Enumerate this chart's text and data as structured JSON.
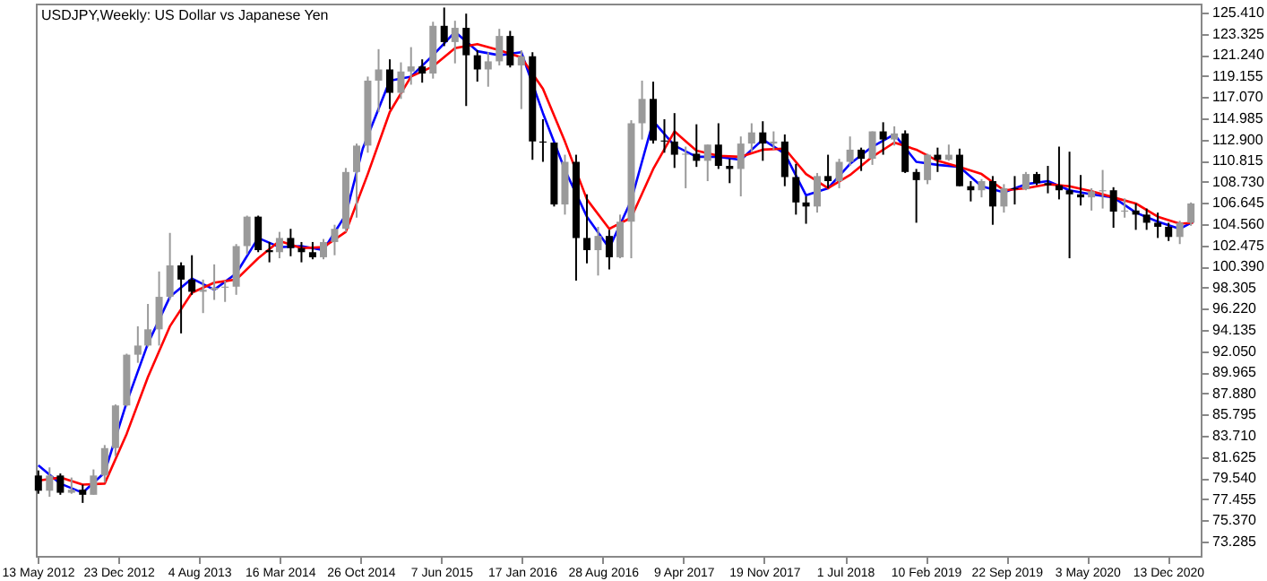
{
  "chart_data": {
    "type": "candlestick",
    "title": "USDJPY,Weekly: US Dollar vs Japanese Yen",
    "x": [
      "2012-05-15",
      "2012-06-15",
      "2012-07-15",
      "2012-08-15",
      "2012-09-15",
      "2012-10-15",
      "2012-11-15",
      "2012-12-15",
      "2013-01-15",
      "2013-02-15",
      "2013-03-15",
      "2013-04-15",
      "2013-05-15",
      "2013-06-15",
      "2013-07-15",
      "2013-08-15",
      "2013-09-15",
      "2013-10-15",
      "2013-11-15",
      "2013-12-15",
      "2014-01-15",
      "2014-02-15",
      "2014-03-15",
      "2014-04-15",
      "2014-05-15",
      "2014-06-15",
      "2014-07-15",
      "2014-08-15",
      "2014-09-15",
      "2014-10-15",
      "2014-11-15",
      "2014-12-15",
      "2015-01-15",
      "2015-02-15",
      "2015-03-15",
      "2015-04-15",
      "2015-05-15",
      "2015-06-15",
      "2015-07-15",
      "2015-08-15",
      "2015-09-15",
      "2015-10-15",
      "2015-11-15",
      "2015-12-15",
      "2016-01-15",
      "2016-02-15",
      "2016-03-15",
      "2016-04-15",
      "2016-05-15",
      "2016-06-15",
      "2016-07-15",
      "2016-08-15",
      "2016-09-15",
      "2016-10-15",
      "2016-11-15",
      "2016-12-15",
      "2017-01-15",
      "2017-02-15",
      "2017-03-15",
      "2017-04-15",
      "2017-05-15",
      "2017-06-15",
      "2017-07-15",
      "2017-08-15",
      "2017-09-15",
      "2017-10-15",
      "2017-11-15",
      "2017-12-15",
      "2018-01-15",
      "2018-02-15",
      "2018-03-15",
      "2018-04-15",
      "2018-05-15",
      "2018-06-15",
      "2018-07-15",
      "2018-08-15",
      "2018-09-15",
      "2018-10-15",
      "2018-11-15",
      "2018-12-15",
      "2019-01-15",
      "2019-02-15",
      "2019-03-15",
      "2019-04-15",
      "2019-05-15",
      "2019-06-15",
      "2019-07-15",
      "2019-08-15",
      "2019-09-15",
      "2019-10-15",
      "2019-11-15",
      "2019-12-15",
      "2020-01-15",
      "2020-02-15",
      "2020-03-15",
      "2020-04-15",
      "2020-05-15",
      "2020-06-15",
      "2020-07-15",
      "2020-08-15",
      "2020-09-15",
      "2020-10-15",
      "2020-11-15",
      "2020-12-15",
      "2021-01-15",
      "2021-02-15"
    ],
    "ohlc": [
      [
        79.8,
        80.3,
        78.0,
        78.3
      ],
      [
        78.3,
        80.6,
        77.7,
        79.8
      ],
      [
        79.8,
        80.0,
        77.9,
        78.1
      ],
      [
        78.1,
        79.6,
        78.0,
        78.4
      ],
      [
        78.4,
        78.9,
        77.1,
        77.9
      ],
      [
        77.9,
        80.4,
        77.9,
        79.8
      ],
      [
        79.8,
        82.8,
        79.1,
        82.5
      ],
      [
        82.5,
        86.8,
        81.7,
        86.7
      ],
      [
        86.7,
        91.8,
        86.6,
        91.7
      ],
      [
        91.7,
        94.5,
        90.9,
        92.6
      ],
      [
        92.6,
        96.7,
        92.5,
        94.2
      ],
      [
        94.2,
        99.9,
        92.6,
        97.4
      ],
      [
        97.4,
        103.7,
        97.1,
        100.5
      ],
      [
        100.5,
        100.8,
        93.8,
        99.1
      ],
      [
        99.1,
        101.5,
        97.6,
        97.9
      ],
      [
        97.9,
        99.1,
        95.8,
        98.1
      ],
      [
        98.1,
        100.6,
        97.1,
        98.3
      ],
      [
        98.3,
        99.0,
        96.9,
        98.4
      ],
      [
        98.4,
        102.6,
        97.6,
        102.4
      ],
      [
        102.4,
        105.4,
        101.6,
        105.3
      ],
      [
        105.3,
        105.4,
        101.8,
        102.0
      ],
      [
        102.0,
        102.8,
        100.8,
        101.8
      ],
      [
        101.8,
        103.8,
        101.2,
        103.2
      ],
      [
        103.2,
        104.1,
        101.4,
        102.2
      ],
      [
        102.2,
        102.8,
        100.8,
        101.8
      ],
      [
        101.8,
        102.8,
        101.1,
        101.3
      ],
      [
        101.3,
        103.1,
        101.1,
        102.8
      ],
      [
        102.8,
        104.5,
        101.5,
        104.1
      ],
      [
        104.1,
        110.1,
        103.8,
        109.7
      ],
      [
        109.7,
        112.5,
        105.2,
        112.3
      ],
      [
        112.3,
        119.1,
        111.6,
        118.7
      ],
      [
        118.7,
        121.8,
        115.6,
        119.8
      ],
      [
        119.8,
        120.8,
        115.9,
        117.5
      ],
      [
        117.5,
        120.5,
        116.9,
        119.6
      ],
      [
        119.6,
        122.0,
        118.3,
        120.1
      ],
      [
        120.1,
        120.8,
        118.5,
        119.4
      ],
      [
        119.4,
        124.5,
        118.9,
        124.1
      ],
      [
        124.1,
        125.9,
        122.1,
        122.5
      ],
      [
        122.5,
        124.6,
        120.4,
        123.9
      ],
      [
        123.9,
        125.3,
        116.2,
        121.2
      ],
      [
        121.2,
        121.7,
        118.6,
        119.8
      ],
      [
        119.8,
        121.5,
        118.1,
        120.6
      ],
      [
        120.6,
        123.8,
        120.2,
        123.1
      ],
      [
        123.1,
        123.6,
        120.0,
        120.2
      ],
      [
        120.2,
        121.7,
        115.9,
        121.1
      ],
      [
        121.1,
        121.5,
        110.9,
        112.7
      ],
      [
        112.7,
        114.9,
        110.7,
        112.6
      ],
      [
        112.6,
        112.6,
        106.3,
        106.5
      ],
      [
        106.5,
        111.4,
        105.5,
        110.7
      ],
      [
        110.7,
        111.4,
        99.0,
        103.2
      ],
      [
        103.2,
        107.5,
        100.7,
        102.0
      ],
      [
        102.0,
        104.3,
        99.5,
        103.4
      ],
      [
        103.4,
        104.0,
        100.1,
        101.3
      ],
      [
        101.3,
        105.5,
        101.2,
        104.8
      ],
      [
        104.8,
        114.8,
        101.2,
        114.5
      ],
      [
        114.5,
        118.7,
        112.9,
        116.9
      ],
      [
        116.9,
        118.6,
        112.5,
        112.8
      ],
      [
        112.8,
        114.9,
        111.6,
        112.7
      ],
      [
        112.7,
        115.5,
        110.1,
        111.4
      ],
      [
        111.4,
        112.2,
        108.1,
        111.5
      ],
      [
        111.5,
        114.4,
        110.2,
        110.8
      ],
      [
        110.8,
        112.4,
        108.8,
        112.4
      ],
      [
        112.4,
        114.5,
        110.0,
        110.3
      ],
      [
        110.3,
        111.0,
        108.6,
        110.0
      ],
      [
        110.0,
        113.2,
        107.3,
        112.5
      ],
      [
        112.5,
        114.5,
        111.7,
        113.6
      ],
      [
        113.6,
        114.7,
        110.8,
        112.5
      ],
      [
        112.5,
        113.7,
        111.9,
        112.7
      ],
      [
        112.7,
        113.4,
        108.3,
        109.2
      ],
      [
        109.2,
        110.5,
        105.5,
        106.7
      ],
      [
        106.7,
        107.3,
        104.6,
        106.3
      ],
      [
        106.3,
        109.6,
        105.7,
        109.3
      ],
      [
        109.3,
        111.4,
        108.1,
        108.8
      ],
      [
        108.8,
        111.0,
        108.1,
        110.7
      ],
      [
        110.7,
        113.2,
        110.3,
        111.9
      ],
      [
        111.9,
        112.1,
        109.8,
        111.0
      ],
      [
        111.0,
        113.7,
        110.4,
        113.7
      ],
      [
        113.7,
        114.6,
        111.4,
        112.9
      ],
      [
        112.9,
        114.2,
        112.3,
        113.5
      ],
      [
        113.5,
        113.8,
        109.6,
        109.7
      ],
      [
        109.7,
        110.0,
        104.7,
        108.9
      ],
      [
        108.9,
        111.5,
        108.5,
        111.4
      ],
      [
        111.4,
        112.1,
        109.7,
        110.9
      ],
      [
        110.9,
        112.4,
        110.8,
        111.4
      ],
      [
        111.4,
        112.0,
        108.3,
        108.3
      ],
      [
        108.3,
        108.8,
        106.8,
        107.9
      ],
      [
        107.9,
        109.0,
        107.2,
        108.8
      ],
      [
        108.8,
        109.3,
        104.5,
        106.3
      ],
      [
        106.3,
        108.5,
        105.7,
        108.1
      ],
      [
        108.1,
        109.3,
        106.5,
        108.0
      ],
      [
        108.0,
        109.7,
        107.9,
        109.5
      ],
      [
        109.5,
        109.7,
        108.4,
        108.6
      ],
      [
        108.6,
        110.3,
        107.6,
        108.4
      ],
      [
        108.4,
        112.2,
        107.0,
        107.9
      ],
      [
        107.9,
        111.7,
        101.2,
        107.5
      ],
      [
        107.5,
        109.4,
        106.4,
        107.2
      ],
      [
        107.2,
        108.1,
        105.9,
        107.8
      ],
      [
        107.8,
        109.9,
        106.1,
        107.9
      ],
      [
        107.9,
        108.2,
        104.2,
        105.8
      ],
      [
        105.8,
        107.1,
        105.2,
        105.9
      ],
      [
        105.9,
        106.6,
        104.0,
        105.5
      ],
      [
        105.5,
        106.1,
        104.0,
        104.7
      ],
      [
        104.7,
        105.7,
        103.2,
        104.3
      ],
      [
        104.3,
        104.7,
        102.9,
        103.3
      ],
      [
        103.3,
        104.9,
        102.6,
        104.7
      ],
      [
        104.7,
        106.7,
        104.4,
        106.6
      ]
    ],
    "series": [
      {
        "type": "line",
        "color": "#0000ff",
        "x": [
          "2012-05-15",
          "2012-07-15",
          "2012-09-15",
          "2012-11-15",
          "2013-01-15",
          "2013-03-15",
          "2013-05-15",
          "2013-07-15",
          "2013-09-15",
          "2013-11-15",
          "2014-01-15",
          "2014-03-15",
          "2014-05-15",
          "2014-07-15",
          "2014-09-15",
          "2014-11-01",
          "2015-01-15",
          "2015-03-15",
          "2015-05-15",
          "2015-07-15",
          "2015-09-15",
          "2015-11-15",
          "2016-01-15",
          "2016-03-15",
          "2016-05-15",
          "2016-07-15",
          "2016-09-15",
          "2016-11-15",
          "2017-01-15",
          "2017-03-15",
          "2017-05-15",
          "2017-07-15",
          "2017-09-15",
          "2017-11-15",
          "2018-01-15",
          "2018-03-15",
          "2018-05-15",
          "2018-07-15",
          "2018-09-15",
          "2018-11-15",
          "2019-01-15",
          "2019-03-15",
          "2019-05-15",
          "2019-07-15",
          "2019-09-15",
          "2019-11-15",
          "2020-01-15",
          "2020-03-15",
          "2020-05-15",
          "2020-07-15",
          "2020-09-15",
          "2020-11-15",
          "2021-01-15",
          "2021-02-21"
        ],
        "values": [
          80.8,
          79.0,
          78.1,
          80.1,
          87.0,
          92.8,
          97.4,
          99.2,
          98.1,
          99.7,
          103.2,
          102.3,
          102.4,
          102.0,
          105.5,
          112.0,
          118.7,
          119.1,
          121.2,
          123.5,
          121.6,
          121.2,
          121.5,
          115.5,
          109.9,
          105.3,
          102.2,
          106.9,
          114.7,
          112.3,
          111.2,
          111.2,
          110.9,
          112.9,
          111.5,
          107.4,
          108.1,
          110.5,
          112.2,
          113.4,
          110.7,
          110.4,
          110.2,
          108.3,
          107.7,
          108.5,
          108.8,
          107.9,
          107.5,
          107.2,
          105.7,
          104.8,
          104.1,
          104.8
        ]
      },
      {
        "type": "line",
        "color": "#ff0000",
        "x": [
          "2012-05-15",
          "2012-07-15",
          "2012-09-15",
          "2012-11-15",
          "2013-01-15",
          "2013-03-15",
          "2013-05-15",
          "2013-07-15",
          "2013-09-15",
          "2013-11-15",
          "2014-01-15",
          "2014-03-15",
          "2014-05-15",
          "2014-07-15",
          "2014-09-15",
          "2014-11-15",
          "2015-01-15",
          "2015-03-15",
          "2015-05-15",
          "2015-07-15",
          "2015-09-15",
          "2015-11-15",
          "2016-01-15",
          "2016-03-15",
          "2016-05-15",
          "2016-07-15",
          "2016-09-15",
          "2016-11-15",
          "2017-01-15",
          "2017-03-15",
          "2017-05-15",
          "2017-07-15",
          "2017-09-15",
          "2017-11-15",
          "2018-01-15",
          "2018-03-15",
          "2018-05-15",
          "2018-07-15",
          "2018-09-15",
          "2018-11-15",
          "2019-01-15",
          "2019-03-15",
          "2019-05-15",
          "2019-07-15",
          "2019-09-15",
          "2019-11-15",
          "2020-01-15",
          "2020-03-15",
          "2020-05-15",
          "2020-07-15",
          "2020-09-15",
          "2020-11-15",
          "2021-01-15",
          "2021-02-21"
        ],
        "values": [
          79.3,
          79.6,
          78.9,
          79.0,
          83.9,
          89.5,
          94.5,
          97.8,
          98.8,
          99.1,
          101.2,
          102.9,
          102.2,
          102.3,
          103.8,
          109.5,
          115.6,
          119.1,
          120.1,
          121.9,
          122.3,
          121.7,
          121.0,
          117.9,
          112.7,
          107.0,
          104.1,
          105.2,
          110.0,
          113.7,
          111.8,
          111.3,
          111.2,
          111.9,
          112.0,
          109.5,
          108.1,
          109.4,
          111.2,
          112.6,
          111.9,
          110.8,
          110.2,
          109.5,
          107.9,
          108.1,
          108.5,
          108.3,
          107.8,
          107.2,
          106.6,
          105.3,
          104.6,
          104.7
        ]
      }
    ],
    "xlim": [
      "2012-05-08",
      "2021-03-14"
    ],
    "xticks": [
      {
        "value": "2012-05-13",
        "label": "13 May 2012"
      },
      {
        "value": "2012-12-23",
        "label": "23 Dec 2012"
      },
      {
        "value": "2013-08-04",
        "label": "4 Aug 2013"
      },
      {
        "value": "2014-03-16",
        "label": "16 Mar 2014"
      },
      {
        "value": "2014-10-26",
        "label": "26 Oct 2014"
      },
      {
        "value": "2015-06-07",
        "label": "7 Jun 2015"
      },
      {
        "value": "2016-01-17",
        "label": "17 Jan 2016"
      },
      {
        "value": "2016-08-28",
        "label": "28 Aug 2016"
      },
      {
        "value": "2017-04-09",
        "label": "9 Apr 2017"
      },
      {
        "value": "2017-11-19",
        "label": "19 Nov 2017"
      },
      {
        "value": "2018-07-01",
        "label": "1 Jul 2018"
      },
      {
        "value": "2019-02-10",
        "label": "10 Feb 2019"
      },
      {
        "value": "2019-09-22",
        "label": "22 Sep 2019"
      },
      {
        "value": "2020-05-03",
        "label": "3 May 2020"
      },
      {
        "value": "2020-12-13",
        "label": "13 Dec 2020"
      }
    ],
    "ylim": [
      71.88,
      126.29
    ],
    "yticks": [
      {
        "value": 125.41,
        "label": "125.410"
      },
      {
        "value": 123.325,
        "label": "123.325"
      },
      {
        "value": 121.24,
        "label": "121.240"
      },
      {
        "value": 119.155,
        "label": "119.155"
      },
      {
        "value": 117.07,
        "label": "117.070"
      },
      {
        "value": 114.985,
        "label": "114.985"
      },
      {
        "value": 112.9,
        "label": "112.900"
      },
      {
        "value": 110.815,
        "label": "110.815"
      },
      {
        "value": 108.73,
        "label": "108.730"
      },
      {
        "value": 106.645,
        "label": "106.645"
      },
      {
        "value": 104.56,
        "label": "104.560"
      },
      {
        "value": 102.475,
        "label": "102.475"
      },
      {
        "value": 100.39,
        "label": "100.390"
      },
      {
        "value": 98.305,
        "label": "98.305"
      },
      {
        "value": 96.22,
        "label": "96.220"
      },
      {
        "value": 94.135,
        "label": "94.135"
      },
      {
        "value": 92.05,
        "label": "92.050"
      },
      {
        "value": 89.965,
        "label": "89.965"
      },
      {
        "value": 87.88,
        "label": "87.880"
      },
      {
        "value": 85.795,
        "label": "85.795"
      },
      {
        "value": 83.71,
        "label": "83.710"
      },
      {
        "value": 81.625,
        "label": "81.625"
      },
      {
        "value": 79.54,
        "label": "79.540"
      },
      {
        "value": 77.455,
        "label": "77.455"
      },
      {
        "value": 75.37,
        "label": "75.370"
      },
      {
        "value": 73.285,
        "label": "73.285"
      }
    ],
    "grid": false
  }
}
